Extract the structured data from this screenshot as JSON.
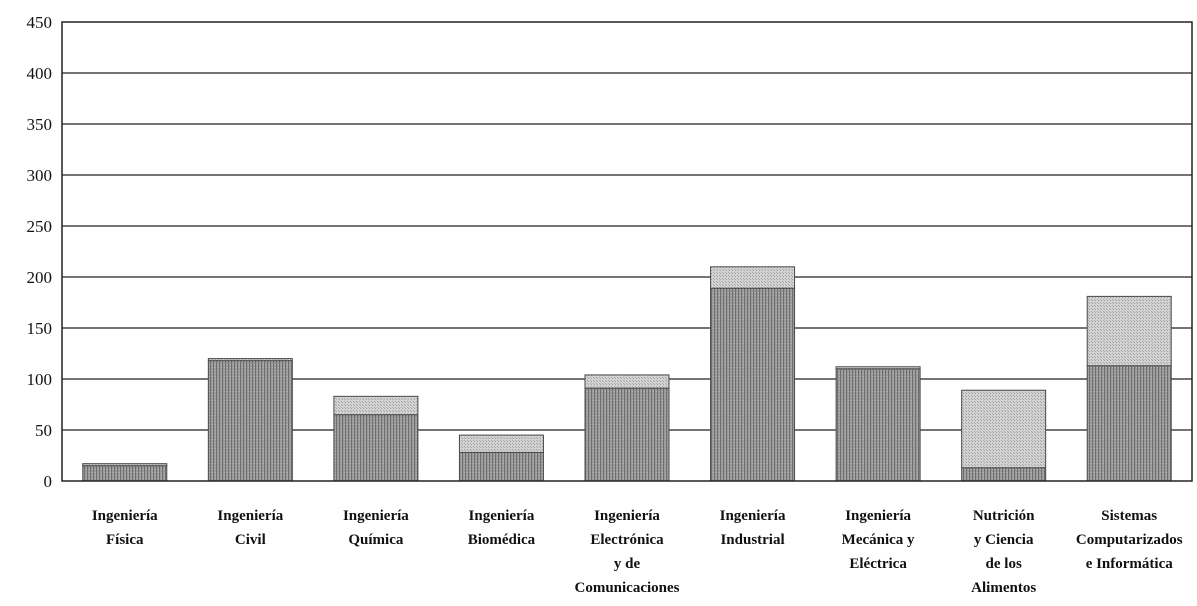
{
  "chart_data": {
    "type": "bar",
    "stacked": true,
    "title": "",
    "xlabel": "",
    "ylabel": "",
    "ylim": [
      0,
      450
    ],
    "yticks": [
      0,
      50,
      100,
      150,
      200,
      250,
      300,
      350,
      400,
      450
    ],
    "grid": true,
    "legend": "none",
    "categories": [
      [
        "Ingeniería",
        "Física"
      ],
      [
        "Ingeniería",
        "Civil"
      ],
      [
        "Ingeniería",
        "Química"
      ],
      [
        "Ingeniería",
        "Biomédica"
      ],
      [
        "Ingeniería",
        "Electrónica",
        "y de",
        "Comunicaciones"
      ],
      [
        "Ingeniería",
        "Industrial"
      ],
      [
        "Ingeniería",
        "Mecánica y",
        "Eléctrica"
      ],
      [
        "Nutrición",
        "y Ciencia",
        "de los",
        "Alimentos"
      ],
      [
        "Sistemas",
        "Computarizados",
        "e Informática"
      ]
    ],
    "series": [
      {
        "values": [
          15,
          118,
          65,
          28,
          91,
          189,
          110,
          13,
          113
        ],
        "color": "#8f8f8f"
      },
      {
        "values": [
          2,
          2,
          18,
          17,
          13,
          21,
          2,
          76,
          68
        ],
        "color": "#c7c7c7"
      }
    ]
  }
}
